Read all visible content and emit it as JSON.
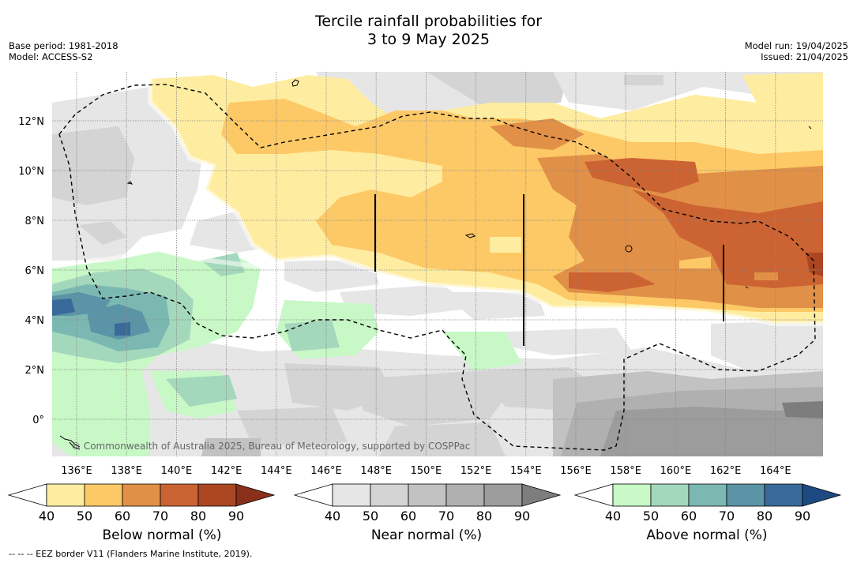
{
  "title_line1": "Tercile rainfall probabilities for",
  "title_line2": "3 to 9 May 2025",
  "base_period": "Base period: 1981-2018",
  "model": "Model: ACCESS-S2",
  "model_run": "Model run: 19/04/2025",
  "issued": "Issued: 21/04/2025",
  "copyright": "© Commonwealth of Australia 2025, Bureau of Meteorology, supported by COSPPac",
  "footnote": "--  --  -- EEZ border V11 (Flanders Marine Institute, 2019).",
  "map": {
    "lon_ticks": [
      "136°E",
      "138°E",
      "140°E",
      "142°E",
      "144°E",
      "146°E",
      "148°E",
      "150°E",
      "152°E",
      "154°E",
      "156°E",
      "158°E",
      "160°E",
      "162°E",
      "164°E"
    ],
    "lat_ticks": [
      "12°N",
      "10°N",
      "8°N",
      "6°N",
      "4°N",
      "2°N",
      "0°"
    ],
    "lon_range": [
      135,
      166
    ],
    "lat_range": [
      -1.5,
      14
    ]
  },
  "colorbars": [
    {
      "label": "Below normal (%)",
      "ticks": [
        "40",
        "50",
        "60",
        "70",
        "80",
        "90"
      ],
      "colors": [
        "#ffffff",
        "#feeda0",
        "#fdc966",
        "#e19047",
        "#cc6333",
        "#ab4622",
        "#8a2f1a"
      ]
    },
    {
      "label": "Near normal (%)",
      "ticks": [
        "40",
        "50",
        "60",
        "70",
        "80",
        "90"
      ],
      "colors": [
        "#ffffff",
        "#e6e6e6",
        "#d4d4d4",
        "#c2c2c2",
        "#b0b0b0",
        "#9c9c9c",
        "#7d7d7d"
      ]
    },
    {
      "label": "Above normal (%)",
      "ticks": [
        "40",
        "50",
        "60",
        "70",
        "80",
        "90"
      ],
      "colors": [
        "#ffffff",
        "#c7f8c6",
        "#a4d8bc",
        "#7cb8b2",
        "#5a94a6",
        "#3a6a9a",
        "#1d4a82"
      ]
    }
  ]
}
